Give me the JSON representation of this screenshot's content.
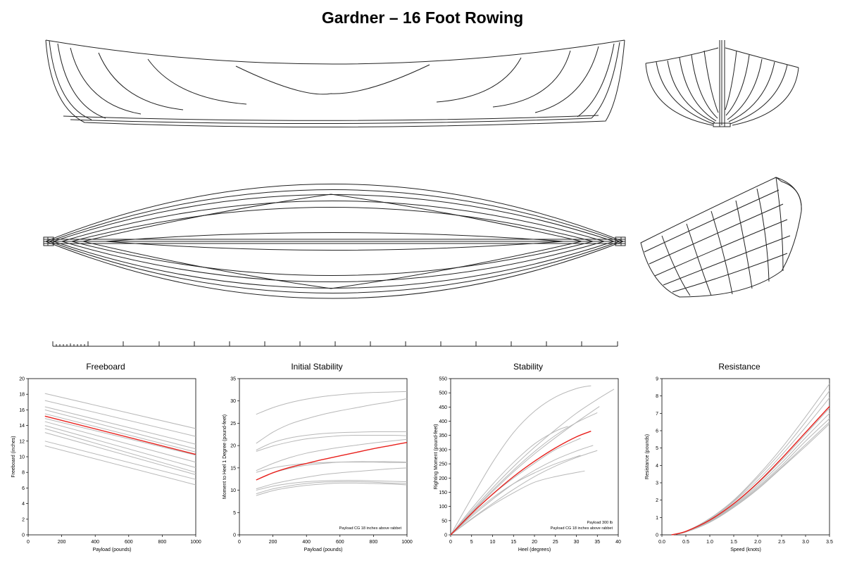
{
  "title": "Gardner – 16 Foot Rowing",
  "colors": {
    "highlight": "#e8201c",
    "others": "#b8b8b8",
    "lines": "#222222"
  },
  "chart_data": [
    {
      "type": "line",
      "title": "Freeboard",
      "xlabel": "Payload (pounds)",
      "ylabel": "Freeboard (inches)",
      "xlim": [
        0,
        1000
      ],
      "ylim": [
        0,
        20
      ],
      "xticks": [
        0,
        200,
        400,
        600,
        800,
        1000
      ],
      "yticks": [
        0,
        2,
        4,
        6,
        8,
        10,
        12,
        14,
        16,
        18,
        20
      ],
      "note": [],
      "highlight": {
        "x": [
          100,
          1000
        ],
        "y": [
          15.2,
          10.3
        ]
      },
      "series": [
        {
          "x": [
            100,
            1000
          ],
          "y": [
            18.1,
            13.6
          ]
        },
        {
          "x": [
            100,
            1000
          ],
          "y": [
            17.2,
            12.6
          ]
        },
        {
          "x": [
            100,
            1000
          ],
          "y": [
            16.4,
            11.6
          ]
        },
        {
          "x": [
            100,
            1000
          ],
          "y": [
            16.0,
            11.0
          ]
        },
        {
          "x": [
            100,
            1000
          ],
          "y": [
            15.5,
            10.6
          ]
        },
        {
          "x": [
            100,
            1000
          ],
          "y": [
            14.9,
            10.2
          ]
        },
        {
          "x": [
            100,
            1000
          ],
          "y": [
            14.5,
            9.3
          ]
        },
        {
          "x": [
            100,
            1000
          ],
          "y": [
            14.0,
            8.6
          ]
        },
        {
          "x": [
            100,
            1000
          ],
          "y": [
            13.6,
            8.0
          ]
        },
        {
          "x": [
            100,
            1000
          ],
          "y": [
            13.1,
            7.7
          ]
        },
        {
          "x": [
            100,
            1000
          ],
          "y": [
            12.0,
            7.1
          ]
        },
        {
          "x": [
            100,
            1000
          ],
          "y": [
            11.4,
            6.4
          ]
        }
      ]
    },
    {
      "type": "line",
      "title": "Initial Stability",
      "xlabel": "Payload (pounds)",
      "ylabel": "Moment to Heel 1 Degree  (pound-feet)",
      "xlim": [
        0,
        1000
      ],
      "ylim": [
        0,
        35
      ],
      "xticks": [
        0,
        200,
        400,
        600,
        800,
        1000
      ],
      "yticks": [
        0,
        5,
        10,
        15,
        20,
        25,
        30,
        35
      ],
      "note": [
        "Payload CG 18 inches above rabbet"
      ],
      "highlight": {
        "x": [
          100,
          200,
          300,
          400,
          500,
          600,
          700,
          800,
          900,
          1000
        ],
        "y": [
          12.3,
          13.9,
          15.1,
          16.0,
          16.9,
          17.7,
          18.5,
          19.3,
          20.0,
          20.7
        ]
      },
      "series": [
        {
          "x": [
            100,
            200,
            300,
            400,
            500,
            600,
            700,
            800,
            900,
            1000
          ],
          "y": [
            27.0,
            28.5,
            29.6,
            30.4,
            31.0,
            31.4,
            31.7,
            31.9,
            32.0,
            32.1
          ]
        },
        {
          "x": [
            100,
            200,
            300,
            400,
            500,
            600,
            700,
            800,
            900,
            1000
          ],
          "y": [
            20.5,
            23.0,
            24.8,
            26.0,
            27.0,
            27.8,
            28.5,
            29.2,
            29.8,
            30.5
          ]
        },
        {
          "x": [
            100,
            200,
            300,
            400,
            500,
            600,
            700,
            800,
            900,
            1000
          ],
          "y": [
            19.0,
            20.7,
            21.7,
            22.3,
            22.7,
            22.9,
            23.0,
            23.1,
            23.1,
            23.1
          ]
        },
        {
          "x": [
            100,
            200,
            300,
            400,
            500,
            600,
            700,
            800,
            900,
            1000
          ],
          "y": [
            18.7,
            19.9,
            20.8,
            21.5,
            21.9,
            22.2,
            22.3,
            22.3,
            22.3,
            22.2
          ]
        },
        {
          "x": [
            100,
            200,
            300,
            400,
            500,
            600,
            700,
            800,
            900,
            1000
          ],
          "y": [
            14.4,
            16.0,
            17.3,
            18.3,
            19.0,
            19.6,
            20.1,
            20.6,
            21.0,
            21.4
          ]
        },
        {
          "x": [
            100,
            200,
            300,
            400,
            500,
            600,
            700,
            800,
            900,
            1000
          ],
          "y": [
            14.0,
            15.0,
            15.6,
            16.0,
            16.2,
            16.3,
            16.3,
            16.3,
            16.2,
            16.2
          ]
        },
        {
          "x": [
            100,
            200,
            300,
            400,
            500,
            600,
            700,
            800,
            900,
            1000
          ],
          "y": [
            12.3,
            13.9,
            14.9,
            15.6,
            16.0,
            16.3,
            16.4,
            16.4,
            16.4,
            16.3
          ]
        },
        {
          "x": [
            100,
            200,
            300,
            400,
            500,
            600,
            700,
            800,
            900,
            1000
          ],
          "y": [
            10.3,
            11.4,
            12.2,
            12.9,
            13.5,
            13.9,
            14.2,
            14.5,
            14.8,
            15.0
          ]
        },
        {
          "x": [
            100,
            200,
            300,
            400,
            500,
            600,
            700,
            800,
            900,
            1000
          ],
          "y": [
            10.0,
            10.9,
            11.5,
            11.9,
            12.1,
            12.2,
            12.2,
            12.1,
            12.0,
            11.9
          ]
        },
        {
          "x": [
            100,
            200,
            300,
            400,
            500,
            600,
            700,
            800,
            900,
            1000
          ],
          "y": [
            9.2,
            10.3,
            11.0,
            11.5,
            11.8,
            11.9,
            11.9,
            11.8,
            11.6,
            11.5
          ]
        },
        {
          "x": [
            100,
            200,
            300,
            400,
            500,
            600,
            700,
            800,
            900,
            1000
          ],
          "y": [
            8.8,
            9.9,
            10.6,
            11.1,
            11.4,
            11.6,
            11.6,
            11.5,
            11.4,
            11.2
          ]
        }
      ]
    },
    {
      "type": "line",
      "title": "Stability",
      "xlabel": "Heel  (degrees)",
      "ylabel": "Righting Moment  (pound-feet)",
      "xlim": [
        0,
        40
      ],
      "ylim": [
        0,
        550
      ],
      "xticks": [
        0,
        5,
        10,
        15,
        20,
        25,
        30,
        35,
        40
      ],
      "yticks": [
        0,
        50,
        100,
        150,
        200,
        250,
        300,
        350,
        400,
        450,
        500,
        550
      ],
      "note": [
        "Payload 300 lb",
        "Payload CG 18 inches above rabbet"
      ],
      "highlight": {
        "x": [
          0,
          5,
          10,
          15,
          20,
          25,
          30,
          33.5
        ],
        "y": [
          0,
          75,
          143,
          205,
          259,
          306,
          345,
          365
        ]
      },
      "series": [
        {
          "x": [
            0,
            5,
            10,
            15,
            20,
            25,
            30,
            33.5
          ],
          "y": [
            0,
            130,
            255,
            360,
            435,
            485,
            515,
            525
          ]
        },
        {
          "x": [
            0,
            5,
            10,
            15,
            20,
            25,
            30,
            35,
            39
          ],
          "y": [
            0,
            85,
            165,
            240,
            308,
            370,
            428,
            477,
            513
          ]
        },
        {
          "x": [
            0,
            5,
            10,
            15,
            20,
            25,
            30,
            35
          ],
          "y": [
            0,
            80,
            157,
            228,
            293,
            350,
            395,
            430
          ]
        },
        {
          "x": [
            0,
            5,
            10,
            15,
            20,
            25,
            30,
            35.5
          ],
          "y": [
            0,
            78,
            152,
            222,
            285,
            342,
            396,
            452
          ]
        },
        {
          "x": [
            0,
            5,
            10,
            15,
            20,
            25,
            28
          ],
          "y": [
            0,
            92,
            178,
            255,
            320,
            365,
            382
          ]
        },
        {
          "x": [
            0,
            5,
            10,
            15,
            20,
            25,
            31
          ],
          "y": [
            0,
            75,
            142,
            200,
            252,
            300,
            340
          ]
        },
        {
          "x": [
            0,
            5,
            10,
            15,
            20,
            25,
            30,
            34
          ],
          "y": [
            0,
            65,
            125,
            180,
            227,
            265,
            295,
            315
          ]
        },
        {
          "x": [
            0,
            5,
            10,
            15,
            20,
            25,
            30,
            35
          ],
          "y": [
            0,
            57,
            110,
            160,
            205,
            242,
            272,
            297
          ]
        },
        {
          "x": [
            0,
            5,
            10,
            15,
            20,
            25,
            32
          ],
          "y": [
            0,
            55,
            105,
            148,
            185,
            205,
            225
          ]
        },
        {
          "x": [
            0,
            5,
            10,
            15,
            20,
            25,
            31
          ],
          "y": [
            0,
            70,
            130,
            180,
            218,
            250,
            280
          ]
        }
      ]
    },
    {
      "type": "line",
      "title": "Resistance",
      "xlabel": "Speed  (knots)",
      "ylabel": "Resistance (pounds)",
      "xlim": [
        0,
        3.5
      ],
      "ylim": [
        0,
        9
      ],
      "xticks": [
        0,
        0.5,
        1.0,
        1.5,
        2.0,
        2.5,
        3.0,
        3.5
      ],
      "xtick_labels": [
        "0.0",
        "0.5",
        "1.0",
        "1.5",
        "2.0",
        "2.5",
        "3.0",
        "3.5"
      ],
      "yticks": [
        0,
        1,
        2,
        3,
        4,
        5,
        6,
        7,
        8,
        9
      ],
      "note": [],
      "highlight": {
        "x": [
          0.2,
          0.5,
          1.0,
          1.5,
          2.0,
          2.5,
          3.0,
          3.5
        ],
        "y": [
          0.0,
          0.2,
          0.85,
          1.8,
          3.0,
          4.4,
          5.9,
          7.4
        ]
      },
      "series": [
        {
          "x": [
            0.2,
            0.5,
            1.0,
            1.5,
            2.0,
            2.5,
            3.0,
            3.5
          ],
          "y": [
            0.0,
            0.2,
            0.95,
            2.0,
            3.4,
            5.0,
            6.8,
            8.7
          ]
        },
        {
          "x": [
            0.2,
            0.5,
            1.0,
            1.5,
            2.0,
            2.5,
            3.0,
            3.5
          ],
          "y": [
            0.0,
            0.2,
            0.9,
            1.95,
            3.3,
            4.8,
            6.5,
            8.3
          ]
        },
        {
          "x": [
            0.2,
            0.5,
            1.0,
            1.5,
            2.0,
            2.5,
            3.0,
            3.5
          ],
          "y": [
            0.0,
            0.2,
            0.88,
            1.9,
            3.15,
            4.6,
            6.2,
            7.9
          ]
        },
        {
          "x": [
            0.2,
            0.5,
            1.0,
            1.5,
            2.0,
            2.5,
            3.0,
            3.5
          ],
          "y": [
            0.0,
            0.18,
            0.8,
            1.75,
            2.95,
            4.3,
            5.8,
            7.3
          ]
        },
        {
          "x": [
            0.2,
            0.5,
            1.0,
            1.5,
            2.0,
            2.5,
            3.0,
            3.5
          ],
          "y": [
            0.0,
            0.17,
            0.78,
            1.7,
            2.85,
            4.15,
            5.6,
            7.0
          ]
        },
        {
          "x": [
            0.2,
            0.5,
            1.0,
            1.5,
            2.0,
            2.5,
            3.0,
            3.5
          ],
          "y": [
            0.0,
            0.17,
            0.76,
            1.65,
            2.75,
            4.0,
            5.4,
            6.7
          ]
        },
        {
          "x": [
            0.2,
            0.5,
            1.0,
            1.5,
            2.0,
            2.5,
            3.0,
            3.5
          ],
          "y": [
            0.0,
            0.16,
            0.74,
            1.6,
            2.68,
            3.9,
            5.2,
            6.5
          ]
        },
        {
          "x": [
            0.2,
            0.5,
            1.0,
            1.5,
            2.0,
            2.5,
            3.0,
            3.5
          ],
          "y": [
            0.0,
            0.16,
            0.72,
            1.58,
            2.62,
            3.85,
            5.1,
            6.4
          ]
        }
      ]
    }
  ]
}
